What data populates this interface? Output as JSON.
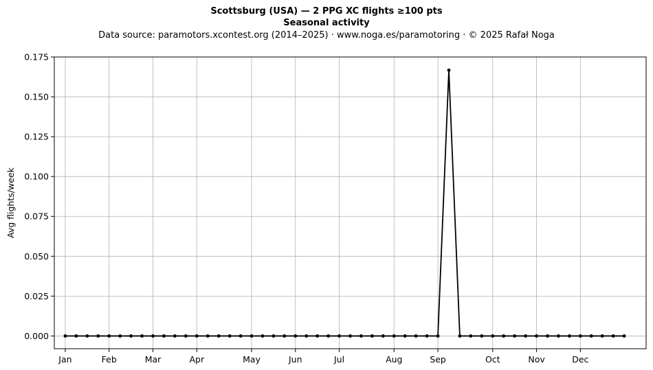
{
  "chart_data": {
    "type": "line",
    "title": "Scottsburg (USA)  —  2 PPG XC flights ≥100 pts",
    "subtitle": "Seasonal activity",
    "source_note": "Data source: paramotors.xcontest.org (2014–2025)  ·  www.noga.es/paramotoring  ·  © 2025 Rafał Noga",
    "xlabel": "",
    "ylabel": "Avg flights/week",
    "xlim": [
      0,
      54
    ],
    "ylim": [
      -0.008,
      0.175
    ],
    "yticks": [
      {
        "value": 0.0,
        "label": "0.000"
      },
      {
        "value": 0.025,
        "label": "0.025"
      },
      {
        "value": 0.05,
        "label": "0.050"
      },
      {
        "value": 0.075,
        "label": "0.075"
      },
      {
        "value": 0.1,
        "label": "0.100"
      },
      {
        "value": 0.125,
        "label": "0.125"
      },
      {
        "value": 0.15,
        "label": "0.150"
      },
      {
        "value": 0.175,
        "label": "0.175"
      }
    ],
    "xticks": [
      {
        "value": 1,
        "label": "Jan"
      },
      {
        "value": 5,
        "label": "Feb"
      },
      {
        "value": 9,
        "label": "Mar"
      },
      {
        "value": 13,
        "label": "Apr"
      },
      {
        "value": 18,
        "label": "May"
      },
      {
        "value": 22,
        "label": "Jun"
      },
      {
        "value": 26,
        "label": "Jul"
      },
      {
        "value": 31,
        "label": "Aug"
      },
      {
        "value": 35,
        "label": "Sep"
      },
      {
        "value": 40,
        "label": "Oct"
      },
      {
        "value": 44,
        "label": "Nov"
      },
      {
        "value": 48,
        "label": "Dec"
      }
    ],
    "grid": true,
    "series": [
      {
        "color": "#000000",
        "x": [
          1,
          2,
          3,
          4,
          5,
          6,
          7,
          8,
          9,
          10,
          11,
          12,
          13,
          14,
          15,
          16,
          17,
          18,
          19,
          20,
          21,
          22,
          23,
          24,
          25,
          26,
          27,
          28,
          29,
          30,
          31,
          32,
          33,
          34,
          35,
          36,
          37,
          38,
          39,
          40,
          41,
          42,
          43,
          44,
          45,
          46,
          47,
          48,
          49,
          50,
          51,
          52
        ],
        "y": [
          0,
          0,
          0,
          0,
          0,
          0,
          0,
          0,
          0,
          0,
          0,
          0,
          0,
          0,
          0,
          0,
          0,
          0,
          0,
          0,
          0,
          0,
          0,
          0,
          0,
          0,
          0,
          0,
          0,
          0,
          0,
          0,
          0,
          0,
          0,
          0.1667,
          0,
          0,
          0,
          0,
          0,
          0,
          0,
          0,
          0,
          0,
          0,
          0,
          0,
          0,
          0,
          0
        ]
      }
    ]
  }
}
